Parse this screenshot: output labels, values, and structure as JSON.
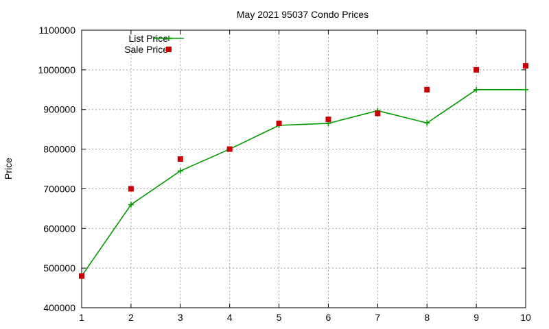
{
  "chart_data": {
    "type": "line",
    "title": "May 2021 95037 Condo Prices",
    "xlabel": "",
    "ylabel": "Price",
    "xlim": [
      1,
      10
    ],
    "ylim": [
      400000,
      1100000
    ],
    "grid": true,
    "legend_position": "top-left",
    "x": [
      1,
      2,
      3,
      4,
      5,
      6,
      7,
      8,
      9,
      10
    ],
    "x_ticks": [
      "1",
      "2",
      "3",
      "4",
      "5",
      "6",
      "7",
      "8",
      "9",
      "10"
    ],
    "y_ticks": [
      {
        "value": 400000,
        "label": "400000"
      },
      {
        "value": 500000,
        "label": "500000"
      },
      {
        "value": 600000,
        "label": "600000"
      },
      {
        "value": 700000,
        "label": "700000"
      },
      {
        "value": 800000,
        "label": "800000"
      },
      {
        "value": 900000,
        "label": "900000"
      },
      {
        "value": 1000000,
        "label": "1000000"
      },
      {
        "value": 1100000,
        "label": "1100000"
      }
    ],
    "series": [
      {
        "name": "List Price",
        "style": "linespoints",
        "marker": "plus",
        "color": "#009900",
        "values": [
          480000,
          660000,
          745000,
          800000,
          860000,
          865000,
          897000,
          866000,
          950000,
          950000
        ]
      },
      {
        "name": "Sale Price",
        "style": "points",
        "marker": "square",
        "color": "#cc0000",
        "values": [
          480000,
          700000,
          775000,
          800000,
          865000,
          875000,
          890000,
          950000,
          1000000,
          1010000
        ]
      }
    ]
  }
}
